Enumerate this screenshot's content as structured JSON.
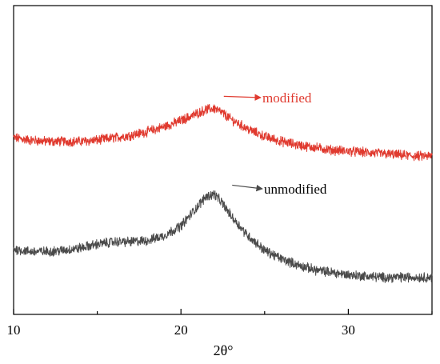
{
  "chart_data": {
    "type": "line",
    "xlabel": "2θ°",
    "ylabel": "",
    "xlim": [
      10,
      35
    ],
    "xticks": [
      10,
      20,
      30
    ],
    "y_ticks_shown": false,
    "grid": false,
    "legend": "none",
    "series": [
      {
        "name": "modified",
        "color": "#e03a2f",
        "x": [
          10,
          11,
          12,
          13,
          14,
          15,
          16,
          17,
          18,
          19,
          20,
          20.5,
          21,
          21.5,
          22,
          22.5,
          23,
          24,
          25,
          26,
          27,
          28,
          29,
          30,
          31,
          32,
          33,
          34,
          35
        ],
        "y": [
          0.64,
          0.63,
          0.625,
          0.625,
          0.625,
          0.63,
          0.64,
          0.65,
          0.665,
          0.685,
          0.71,
          0.725,
          0.74,
          0.755,
          0.76,
          0.74,
          0.715,
          0.675,
          0.645,
          0.625,
          0.61,
          0.6,
          0.59,
          0.585,
          0.58,
          0.575,
          0.57,
          0.565,
          0.565
        ]
      },
      {
        "name": "unmodified",
        "color": "#4a4a4a",
        "x": [
          10,
          11,
          12,
          13,
          14,
          15,
          16,
          17,
          18,
          19,
          20,
          20.5,
          21,
          21.5,
          22,
          22.5,
          23,
          24,
          25,
          26,
          27,
          28,
          29,
          30,
          31,
          32,
          33,
          34,
          35
        ],
        "y": [
          0.185,
          0.175,
          0.175,
          0.18,
          0.19,
          0.205,
          0.215,
          0.215,
          0.22,
          0.24,
          0.28,
          0.32,
          0.36,
          0.4,
          0.41,
          0.37,
          0.32,
          0.24,
          0.18,
          0.145,
          0.12,
          0.1,
          0.09,
          0.08,
          0.075,
          0.07,
          0.07,
          0.07,
          0.07
        ]
      }
    ],
    "annotations": [
      {
        "text": "modified",
        "points_to_x": 21.7,
        "points_to_series": "modified"
      },
      {
        "text": "unmodified",
        "points_to_x": 22.2,
        "points_to_series": "unmodified"
      }
    ]
  }
}
